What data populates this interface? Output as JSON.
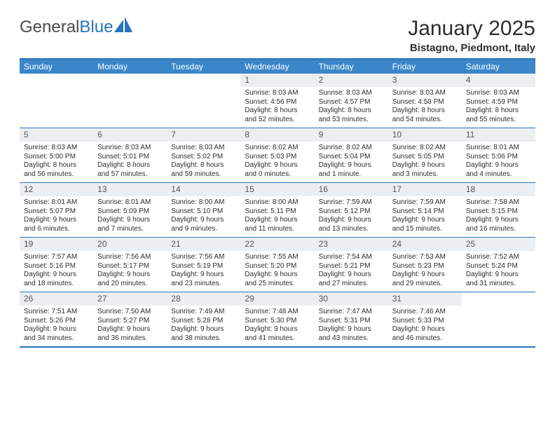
{
  "logo": {
    "part1": "General",
    "part2": "Blue"
  },
  "title": "January 2025",
  "location": "Bistagno, Piedmont, Italy",
  "colors": {
    "header_bg": "#3a86c8",
    "border": "#2874b9",
    "daynum_bg": "#eceff1"
  },
  "day_headers": [
    "Sunday",
    "Monday",
    "Tuesday",
    "Wednesday",
    "Thursday",
    "Friday",
    "Saturday"
  ],
  "weeks": [
    [
      null,
      null,
      null,
      {
        "n": "1",
        "sunrise": "Sunrise: 8:03 AM",
        "sunset": "Sunset: 4:56 PM",
        "day1": "Daylight: 8 hours",
        "day2": "and 52 minutes."
      },
      {
        "n": "2",
        "sunrise": "Sunrise: 8:03 AM",
        "sunset": "Sunset: 4:57 PM",
        "day1": "Daylight: 8 hours",
        "day2": "and 53 minutes."
      },
      {
        "n": "3",
        "sunrise": "Sunrise: 8:03 AM",
        "sunset": "Sunset: 4:58 PM",
        "day1": "Daylight: 8 hours",
        "day2": "and 54 minutes."
      },
      {
        "n": "4",
        "sunrise": "Sunrise: 8:03 AM",
        "sunset": "Sunset: 4:59 PM",
        "day1": "Daylight: 8 hours",
        "day2": "and 55 minutes."
      }
    ],
    [
      {
        "n": "5",
        "sunrise": "Sunrise: 8:03 AM",
        "sunset": "Sunset: 5:00 PM",
        "day1": "Daylight: 8 hours",
        "day2": "and 56 minutes."
      },
      {
        "n": "6",
        "sunrise": "Sunrise: 8:03 AM",
        "sunset": "Sunset: 5:01 PM",
        "day1": "Daylight: 8 hours",
        "day2": "and 57 minutes."
      },
      {
        "n": "7",
        "sunrise": "Sunrise: 8:03 AM",
        "sunset": "Sunset: 5:02 PM",
        "day1": "Daylight: 8 hours",
        "day2": "and 59 minutes."
      },
      {
        "n": "8",
        "sunrise": "Sunrise: 8:02 AM",
        "sunset": "Sunset: 5:03 PM",
        "day1": "Daylight: 9 hours",
        "day2": "and 0 minutes."
      },
      {
        "n": "9",
        "sunrise": "Sunrise: 8:02 AM",
        "sunset": "Sunset: 5:04 PM",
        "day1": "Daylight: 9 hours",
        "day2": "and 1 minute."
      },
      {
        "n": "10",
        "sunrise": "Sunrise: 8:02 AM",
        "sunset": "Sunset: 5:05 PM",
        "day1": "Daylight: 9 hours",
        "day2": "and 3 minutes."
      },
      {
        "n": "11",
        "sunrise": "Sunrise: 8:01 AM",
        "sunset": "Sunset: 5:06 PM",
        "day1": "Daylight: 9 hours",
        "day2": "and 4 minutes."
      }
    ],
    [
      {
        "n": "12",
        "sunrise": "Sunrise: 8:01 AM",
        "sunset": "Sunset: 5:07 PM",
        "day1": "Daylight: 9 hours",
        "day2": "and 6 minutes."
      },
      {
        "n": "13",
        "sunrise": "Sunrise: 8:01 AM",
        "sunset": "Sunset: 5:09 PM",
        "day1": "Daylight: 9 hours",
        "day2": "and 7 minutes."
      },
      {
        "n": "14",
        "sunrise": "Sunrise: 8:00 AM",
        "sunset": "Sunset: 5:10 PM",
        "day1": "Daylight: 9 hours",
        "day2": "and 9 minutes."
      },
      {
        "n": "15",
        "sunrise": "Sunrise: 8:00 AM",
        "sunset": "Sunset: 5:11 PM",
        "day1": "Daylight: 9 hours",
        "day2": "and 11 minutes."
      },
      {
        "n": "16",
        "sunrise": "Sunrise: 7:59 AM",
        "sunset": "Sunset: 5:12 PM",
        "day1": "Daylight: 9 hours",
        "day2": "and 13 minutes."
      },
      {
        "n": "17",
        "sunrise": "Sunrise: 7:59 AM",
        "sunset": "Sunset: 5:14 PM",
        "day1": "Daylight: 9 hours",
        "day2": "and 15 minutes."
      },
      {
        "n": "18",
        "sunrise": "Sunrise: 7:58 AM",
        "sunset": "Sunset: 5:15 PM",
        "day1": "Daylight: 9 hours",
        "day2": "and 16 minutes."
      }
    ],
    [
      {
        "n": "19",
        "sunrise": "Sunrise: 7:57 AM",
        "sunset": "Sunset: 5:16 PM",
        "day1": "Daylight: 9 hours",
        "day2": "and 18 minutes."
      },
      {
        "n": "20",
        "sunrise": "Sunrise: 7:56 AM",
        "sunset": "Sunset: 5:17 PM",
        "day1": "Daylight: 9 hours",
        "day2": "and 20 minutes."
      },
      {
        "n": "21",
        "sunrise": "Sunrise: 7:56 AM",
        "sunset": "Sunset: 5:19 PM",
        "day1": "Daylight: 9 hours",
        "day2": "and 23 minutes."
      },
      {
        "n": "22",
        "sunrise": "Sunrise: 7:55 AM",
        "sunset": "Sunset: 5:20 PM",
        "day1": "Daylight: 9 hours",
        "day2": "and 25 minutes."
      },
      {
        "n": "23",
        "sunrise": "Sunrise: 7:54 AM",
        "sunset": "Sunset: 5:21 PM",
        "day1": "Daylight: 9 hours",
        "day2": "and 27 minutes."
      },
      {
        "n": "24",
        "sunrise": "Sunrise: 7:53 AM",
        "sunset": "Sunset: 5:23 PM",
        "day1": "Daylight: 9 hours",
        "day2": "and 29 minutes."
      },
      {
        "n": "25",
        "sunrise": "Sunrise: 7:52 AM",
        "sunset": "Sunset: 5:24 PM",
        "day1": "Daylight: 9 hours",
        "day2": "and 31 minutes."
      }
    ],
    [
      {
        "n": "26",
        "sunrise": "Sunrise: 7:51 AM",
        "sunset": "Sunset: 5:26 PM",
        "day1": "Daylight: 9 hours",
        "day2": "and 34 minutes."
      },
      {
        "n": "27",
        "sunrise": "Sunrise: 7:50 AM",
        "sunset": "Sunset: 5:27 PM",
        "day1": "Daylight: 9 hours",
        "day2": "and 36 minutes."
      },
      {
        "n": "28",
        "sunrise": "Sunrise: 7:49 AM",
        "sunset": "Sunset: 5:28 PM",
        "day1": "Daylight: 9 hours",
        "day2": "and 38 minutes."
      },
      {
        "n": "29",
        "sunrise": "Sunrise: 7:48 AM",
        "sunset": "Sunset: 5:30 PM",
        "day1": "Daylight: 9 hours",
        "day2": "and 41 minutes."
      },
      {
        "n": "30",
        "sunrise": "Sunrise: 7:47 AM",
        "sunset": "Sunset: 5:31 PM",
        "day1": "Daylight: 9 hours",
        "day2": "and 43 minutes."
      },
      {
        "n": "31",
        "sunrise": "Sunrise: 7:46 AM",
        "sunset": "Sunset: 5:33 PM",
        "day1": "Daylight: 9 hours",
        "day2": "and 46 minutes."
      },
      null
    ]
  ]
}
